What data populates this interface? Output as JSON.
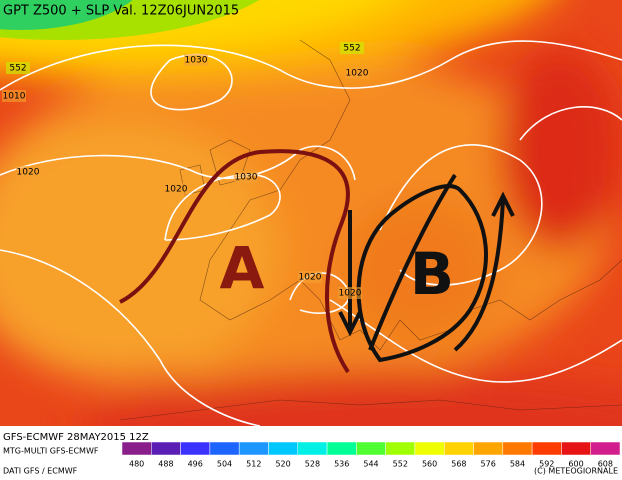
{
  "header": {
    "title": "GPT Z500 + SLP Val. 12Z06JUN2015"
  },
  "contour_labels": [
    "1030",
    "552",
    "552",
    "1020",
    "1010",
    "1020",
    "1020",
    "1030",
    "1020",
    "1020"
  ],
  "annotations": [
    "A",
    "B"
  ],
  "footer": {
    "run": "GFS-ECMWF 28MAY2015 12Z",
    "model": "MTG-MULTI GFS-ECMWF",
    "source": "DATI GFS / ECMWF",
    "credit": "(C) METEOGIORNALE"
  },
  "scale": {
    "labels": [
      480,
      488,
      496,
      504,
      512,
      520,
      528,
      536,
      544,
      552,
      560,
      568,
      576,
      584,
      592,
      600,
      608
    ],
    "colors": [
      "#8a1e8a",
      "#5a1eb4",
      "#3c32ff",
      "#1e64ff",
      "#1e96ff",
      "#00c8ff",
      "#00f0e6",
      "#00ff96",
      "#50ff32",
      "#a0ff00",
      "#f0ff00",
      "#ffd200",
      "#ffa500",
      "#ff7800",
      "#ff3c00",
      "#e61414",
      "#d21e8c"
    ]
  }
}
